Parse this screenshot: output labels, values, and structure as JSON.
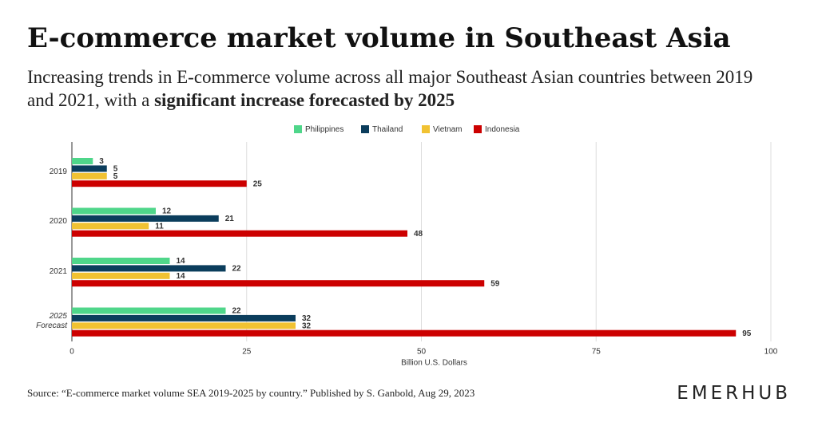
{
  "chart_data": {
    "type": "hbar",
    "title": "E-commerce market volume in Southeast Asia",
    "subtitle": "Increasing trends in E-commerce volume across all major Southeast Asian countries between 2019 and 2021, with a",
    "subtitle_emphasis": "significant increase forecasted by 2025",
    "categories": [
      "2019",
      "2020",
      "2021",
      "2025 Forecast"
    ],
    "series": [
      {
        "name": "Philippines",
        "color": "#4fd68a",
        "label_color": "#4fd68a",
        "values": [
          3,
          12,
          14,
          22
        ]
      },
      {
        "name": "Thailand",
        "color": "#0b3d5c",
        "label_color": "#0b3d5c",
        "values": [
          5,
          21,
          22,
          32
        ]
      },
      {
        "name": "Vietnam",
        "color": "#f1c232",
        "label_color": "#f1c232",
        "values": [
          5,
          11,
          14,
          32
        ]
      },
      {
        "name": "Indonesia",
        "color": "#cc0000",
        "label_color": "#cc0000",
        "values": [
          25,
          48,
          59,
          95
        ]
      }
    ],
    "xlim": [
      0,
      100
    ],
    "xticks": [
      0,
      25,
      50,
      75,
      100
    ],
    "grid": true,
    "x_label": "Billion U.S. Dollars",
    "source": "Source: “E-commerce market volume SEA 2019-2025 by country.” Published by S. Ganbold, Aug 29, 2023",
    "brand": "EMERHUB"
  }
}
